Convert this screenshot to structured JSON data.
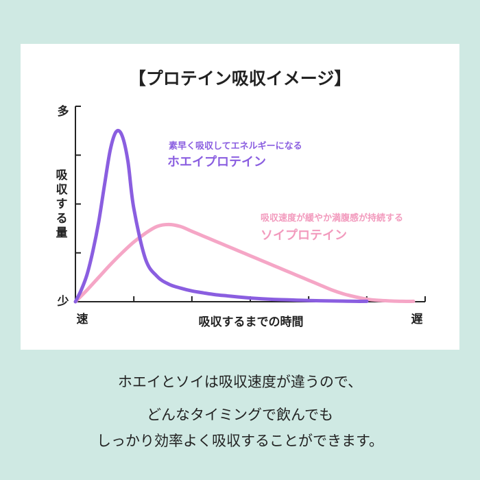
{
  "chart_data": {
    "type": "line",
    "title": "【プロテイン吸収イメージ】",
    "xlabel": "吸収するまでの時間",
    "ylabel": "吸収する量",
    "x_start_label": "速",
    "x_end_label": "遅",
    "y_top_label": "多",
    "y_bottom_label": "少",
    "series": [
      {
        "name": "ホエイプロテイン",
        "description": "素早く吸収してエネルギーになる",
        "color": "#8a5ee0",
        "x": [
          0,
          0.5,
          1,
          1.5,
          2,
          2.5,
          3,
          3.5,
          4,
          4.5,
          5,
          6,
          7,
          8,
          9,
          10,
          11,
          12,
          13,
          14,
          15,
          16,
          17,
          18,
          19,
          20,
          21,
          22,
          23,
          24,
          25
        ],
        "y": [
          0,
          0.6,
          1.4,
          2.6,
          4.1,
          6.0,
          7.8,
          8.7,
          8.5,
          7.2,
          4.8,
          2.2,
          1.3,
          0.9,
          0.7,
          0.55,
          0.45,
          0.36,
          0.3,
          0.24,
          0.19,
          0.15,
          0.12,
          0.1,
          0.08,
          0.06,
          0.05,
          0.04,
          0.03,
          0.02,
          0.02
        ]
      },
      {
        "name": "ソイプロテイン",
        "description": "吸収速度が緩やか満腹感が持続する",
        "color": "#f5a6c6",
        "x": [
          0,
          1,
          2,
          3,
          4,
          5,
          6,
          7,
          8,
          9,
          10,
          11,
          12,
          13,
          14,
          15,
          16,
          17,
          18,
          19,
          20,
          21,
          22,
          23,
          24,
          25,
          26,
          27,
          28,
          29
        ],
        "y": [
          0,
          0.6,
          1.25,
          1.9,
          2.5,
          3.05,
          3.5,
          3.85,
          3.95,
          3.85,
          3.6,
          3.35,
          3.1,
          2.85,
          2.6,
          2.35,
          2.1,
          1.85,
          1.6,
          1.35,
          1.1,
          0.85,
          0.6,
          0.4,
          0.25,
          0.13,
          0.07,
          0.04,
          0.02,
          0.02
        ]
      }
    ],
    "ylim": [
      0,
      10
    ],
    "xlim": [
      0,
      30
    ],
    "grid": false
  },
  "annotations": {
    "whey_desc": "素早く吸収してエネルギーになる",
    "whey_name": "ホエイプロテイン",
    "soy_desc": "吸収速度が緩やか満腹感が持続する",
    "soy_name": "ソイプロテイン"
  },
  "caption": {
    "line1": "ホエイとソイは吸収速度が違うので、",
    "line2": "どんなタイミングで飲んでも",
    "line3": "しっかり効率よく吸収することができます。"
  },
  "colors": {
    "background": "#cfe9e3",
    "whey": "#8a5ee0",
    "soy": "#f5a6c6"
  }
}
